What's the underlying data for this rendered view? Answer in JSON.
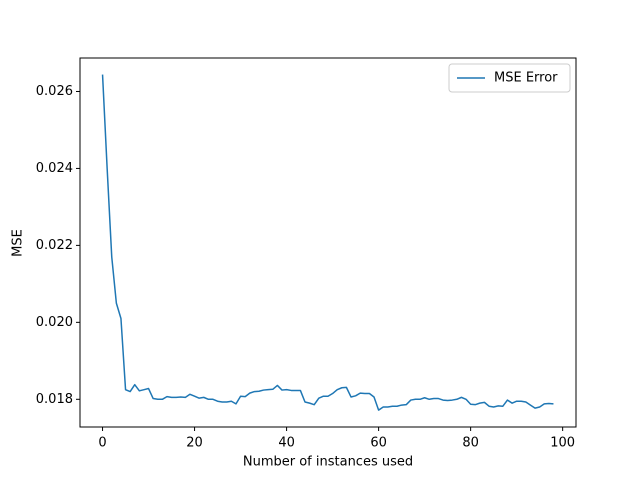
{
  "chart_data": {
    "type": "line",
    "xlabel": "Number of instances used",
    "ylabel": "MSE",
    "x": [
      0,
      1,
      2,
      3,
      4,
      5,
      6,
      7,
      8,
      9,
      10,
      11,
      12,
      13,
      14,
      15,
      16,
      17,
      18,
      19,
      20,
      21,
      22,
      23,
      24,
      25,
      26,
      27,
      28,
      29,
      30,
      31,
      32,
      33,
      34,
      35,
      36,
      37,
      38,
      39,
      40,
      41,
      42,
      43,
      44,
      45,
      46,
      47,
      48,
      49,
      50,
      51,
      52,
      53,
      54,
      55,
      56,
      57,
      58,
      59,
      60,
      61,
      62,
      63,
      64,
      65,
      66,
      67,
      68,
      69,
      70,
      71,
      72,
      73,
      74,
      75,
      76,
      77,
      78,
      79,
      80,
      81,
      82,
      83,
      84,
      85,
      86,
      87,
      88,
      89,
      90,
      91,
      92,
      93,
      94,
      95,
      96,
      97,
      98
    ],
    "series": [
      {
        "name": "MSE Error",
        "color": "#1f77b4",
        "values": [
          0.02644,
          0.024,
          0.0217,
          0.0205,
          0.0201,
          0.01825,
          0.0182,
          0.01838,
          0.01822,
          0.01825,
          0.01828,
          0.01802,
          0.018,
          0.018,
          0.01807,
          0.01805,
          0.01805,
          0.01806,
          0.01805,
          0.01813,
          0.01808,
          0.01803,
          0.01805,
          0.018,
          0.018,
          0.01795,
          0.01793,
          0.01793,
          0.01795,
          0.01788,
          0.01808,
          0.01807,
          0.01816,
          0.0182,
          0.01821,
          0.01824,
          0.01825,
          0.01826,
          0.01836,
          0.01824,
          0.01825,
          0.01823,
          0.01823,
          0.01823,
          0.01793,
          0.0179,
          0.01786,
          0.01803,
          0.01808,
          0.01808,
          0.01815,
          0.01825,
          0.0183,
          0.01831,
          0.01806,
          0.01809,
          0.01816,
          0.01815,
          0.01815,
          0.01806,
          0.01772,
          0.0178,
          0.0178,
          0.01782,
          0.01782,
          0.01785,
          0.01786,
          0.01798,
          0.018,
          0.018,
          0.01804,
          0.018,
          0.01802,
          0.01802,
          0.01798,
          0.01797,
          0.01798,
          0.018,
          0.01805,
          0.018,
          0.01787,
          0.01786,
          0.0179,
          0.01792,
          0.01782,
          0.0178,
          0.01783,
          0.01782,
          0.01798,
          0.0179,
          0.01795,
          0.01795,
          0.01793,
          0.01785,
          0.01777,
          0.0178,
          0.01788,
          0.01789,
          0.01788
        ]
      }
    ],
    "xlim": [
      -4.9,
      102.9
    ],
    "xticks": [
      0,
      20,
      40,
      60,
      80,
      100
    ],
    "ylim": [
      0.01728,
      0.02687
    ],
    "yticks": [
      0.018,
      {
        "value": 0.02,
        "label": "0.020"
      },
      0.022,
      0.024,
      0.026
    ],
    "legend": "upper right",
    "grid": false
  }
}
